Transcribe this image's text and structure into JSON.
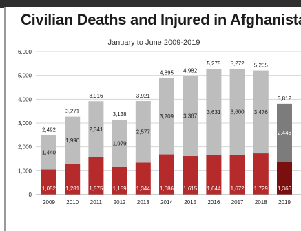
{
  "chart_data": {
    "type": "bar",
    "stacked": true,
    "title": "Civilian Deaths and Injured in Afghanistan",
    "subtitle": "January to June 2009-2019",
    "categories": [
      "2009",
      "2010",
      "2011",
      "2012",
      "2013",
      "2014",
      "2015",
      "2016",
      "2017",
      "2018",
      "2019"
    ],
    "series": [
      {
        "values": [
          1052,
          1281,
          1575,
          1159,
          1344,
          1686,
          1615,
          1644,
          1672,
          1729,
          1366
        ]
      },
      {
        "values": [
          1440,
          1990,
          2341,
          1979,
          2577,
          3209,
          3367,
          3631,
          3600,
          3476,
          2446
        ]
      }
    ],
    "totals": [
      2492,
      3271,
      3916,
      3138,
      3921,
      4895,
      4982,
      5275,
      5272,
      5205,
      3812
    ],
    "ylim": [
      0,
      6000
    ],
    "yticks": [
      0,
      1000,
      2000,
      3000,
      4000,
      5000,
      6000
    ],
    "ytick_labels": [
      "0",
      "1,000",
      "2,000",
      "3,000",
      "4,000",
      "5,000",
      "6,000"
    ],
    "grid": true,
    "colors": {
      "deaths": "#b52a2a",
      "injured": "#bdbdbd",
      "highlight_deaths": "#7a0f0f",
      "highlight_injured": "#7c7c7c",
      "grid": "#d6d6d6"
    },
    "highlight_index": 10
  }
}
